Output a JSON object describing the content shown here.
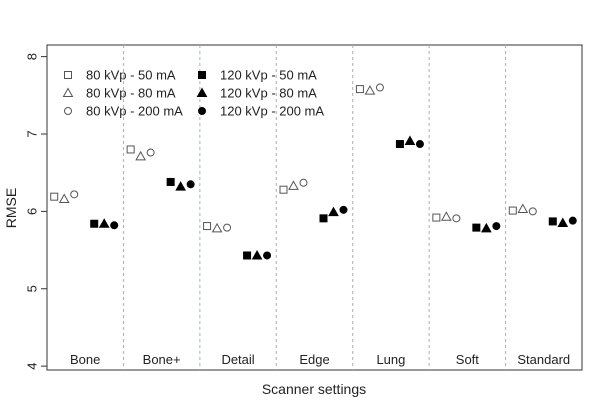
{
  "chart_data": {
    "type": "scatter",
    "xlabel": "Scanner settings",
    "ylabel": "RMSE",
    "ylim": [
      3.95,
      8.15
    ],
    "yticks": [
      4,
      5,
      6,
      7,
      8
    ],
    "grid": "dashed vertical separators between groups",
    "legend_position": "top-left",
    "categories": [
      "Bone",
      "Bone+",
      "Detail",
      "Edge",
      "Lung",
      "Soft",
      "Standard"
    ],
    "series": [
      {
        "name": "80 kVp - 50 mA",
        "marker": "square",
        "fill": "open",
        "values": [
          6.19,
          6.8,
          5.81,
          6.28,
          7.58,
          5.92,
          6.01
        ]
      },
      {
        "name": "80 kVp - 80 mA",
        "marker": "triangle",
        "fill": "open",
        "values": [
          6.16,
          6.71,
          5.78,
          6.33,
          7.56,
          5.93,
          6.03
        ]
      },
      {
        "name": "80 kVp - 200 mA",
        "marker": "circle",
        "fill": "open",
        "values": [
          6.22,
          6.76,
          5.79,
          6.37,
          7.6,
          5.91,
          6.0
        ]
      },
      {
        "name": "120 kVp - 50 mA",
        "marker": "square",
        "fill": "filled",
        "values": [
          5.84,
          6.38,
          5.43,
          5.91,
          6.87,
          5.79,
          5.87
        ]
      },
      {
        "name": "120 kVp - 80 mA",
        "marker": "triangle",
        "fill": "filled",
        "values": [
          5.84,
          6.32,
          5.43,
          5.99,
          6.91,
          5.78,
          5.85
        ]
      },
      {
        "name": "120 kVp - 200 mA",
        "marker": "circle",
        "fill": "filled",
        "values": [
          5.82,
          6.35,
          5.43,
          6.02,
          6.87,
          5.81,
          5.88
        ]
      }
    ]
  }
}
